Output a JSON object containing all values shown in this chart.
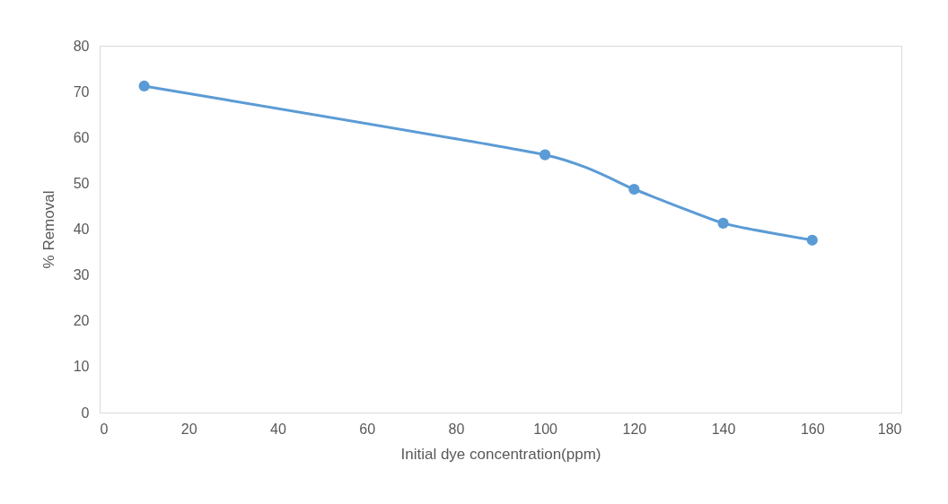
{
  "chart_data": {
    "type": "line",
    "xlabel": "Initial dye concentration(ppm)",
    "ylabel": "% Removal",
    "x": [
      10,
      100,
      120,
      140,
      160
    ],
    "series": [
      {
        "color": "#5b9bd5",
        "values": [
          71.2,
          56.2,
          48.7,
          41.3,
          37.6
        ]
      }
    ],
    "xlim": [
      0,
      180
    ],
    "xticks": [
      0,
      20,
      40,
      60,
      80,
      100,
      120,
      140,
      160,
      180
    ],
    "ylim": [
      0,
      80
    ],
    "yticks": [
      0,
      10,
      20,
      30,
      40,
      50,
      60,
      70,
      80
    ],
    "grid": false,
    "marker": "circle",
    "line_style": "solid"
  }
}
